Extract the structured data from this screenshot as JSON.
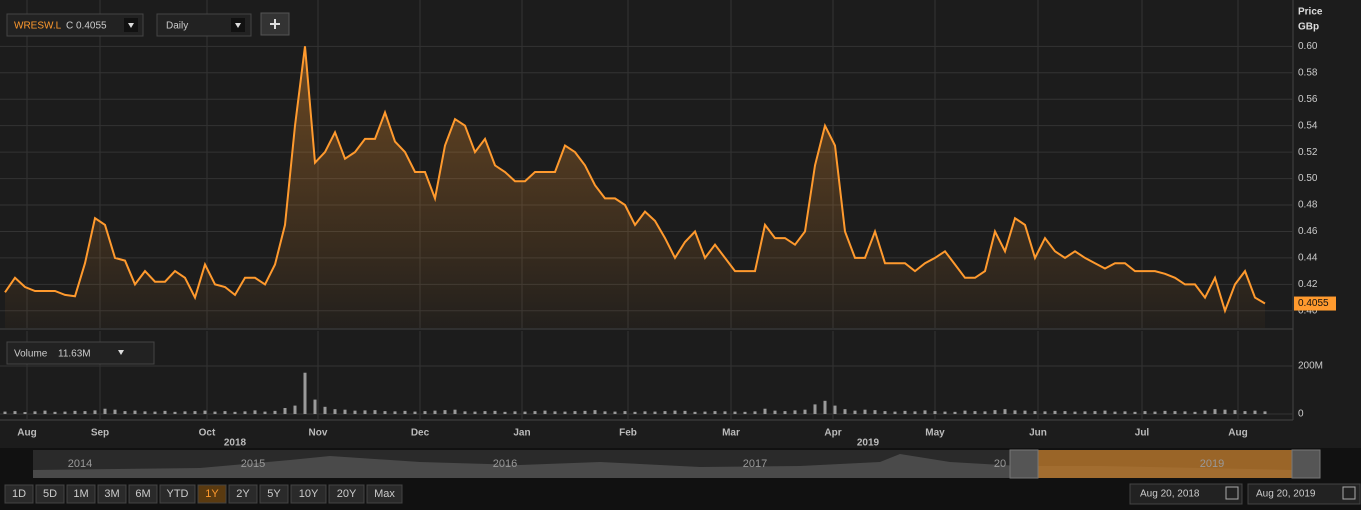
{
  "toolbar": {
    "symbol": "WRESW.L",
    "close_prefix": "C",
    "close_value": "0.4055",
    "interval": "Daily"
  },
  "chart_data": [
    {
      "type": "line",
      "ylabel": "Price",
      "yunit": "GBp",
      "color": "#ff9a2e",
      "grid": true,
      "values": [
        0.414,
        0.425,
        0.418,
        0.415,
        0.415,
        0.415,
        0.412,
        0.411,
        0.436,
        0.47,
        0.465,
        0.44,
        0.438,
        0.42,
        0.43,
        0.422,
        0.422,
        0.43,
        0.425,
        0.41,
        0.435,
        0.42,
        0.418,
        0.412,
        0.425,
        0.425,
        0.42,
        0.435,
        0.465,
        0.54,
        0.6,
        0.512,
        0.52,
        0.535,
        0.515,
        0.52,
        0.53,
        0.53,
        0.55,
        0.528,
        0.52,
        0.505,
        0.505,
        0.485,
        0.525,
        0.545,
        0.54,
        0.52,
        0.53,
        0.51,
        0.505,
        0.498,
        0.498,
        0.505,
        0.505,
        0.505,
        0.525,
        0.52,
        0.51,
        0.495,
        0.485,
        0.485,
        0.48,
        0.465,
        0.475,
        0.468,
        0.455,
        0.44,
        0.452,
        0.46,
        0.44,
        0.45,
        0.44,
        0.43,
        0.43,
        0.43,
        0.465,
        0.455,
        0.455,
        0.45,
        0.46,
        0.51,
        0.54,
        0.525,
        0.46,
        0.44,
        0.44,
        0.46,
        0.436,
        0.436,
        0.436,
        0.43,
        0.436,
        0.44,
        0.445,
        0.435,
        0.425,
        0.425,
        0.43,
        0.46,
        0.445,
        0.47,
        0.465,
        0.44,
        0.455,
        0.445,
        0.44,
        0.445,
        0.44,
        0.436,
        0.432,
        0.436,
        0.436,
        0.43,
        0.43,
        0.43,
        0.428,
        0.425,
        0.42,
        0.42,
        0.41,
        0.425,
        0.4,
        0.42,
        0.43,
        0.41,
        0.4055
      ],
      "ylim": [
        0.387,
        0.629
      ],
      "yticks": [
        {
          "value": 0.4,
          "label": "0.40"
        },
        0.42,
        0.44,
        0.46,
        0.48,
        {
          "value": 0.5,
          "label": "0.50"
        },
        0.52,
        0.54,
        0.56,
        0.58,
        {
          "value": 0.6,
          "label": "0.60"
        }
      ],
      "xticks": [
        {
          "value": 2.2,
          "label": "Aug"
        },
        {
          "value": 9.5,
          "label": "Sep"
        },
        {
          "value": 20.2,
          "label": "Oct"
        },
        {
          "value": 31.3,
          "label": "Nov"
        },
        {
          "value": 41.5,
          "label": "Dec"
        },
        {
          "value": 51.7,
          "label": "Jan"
        },
        {
          "value": 62.3,
          "label": "Feb"
        },
        {
          "value": 72.6,
          "label": "Mar"
        },
        {
          "value": 82.8,
          "label": "Apr"
        },
        {
          "value": 93,
          "label": "May"
        },
        {
          "value": 103.3,
          "label": "Jun"
        },
        {
          "value": 113.7,
          "label": "Jul"
        },
        {
          "value": 123.3,
          "label": "Aug"
        }
      ],
      "year_ticks": [
        {
          "value": 23,
          "label": "2018"
        },
        {
          "value": 86.3,
          "label": "2019"
        }
      ]
    },
    {
      "type": "bar",
      "name": "Volume",
      "current": "11.63M",
      "color": "#9a9a9a",
      "values": [
        10,
        12,
        8,
        11,
        14,
        9,
        10,
        13,
        12,
        15,
        22,
        18,
        12,
        14,
        11,
        10,
        13,
        9,
        11,
        12,
        14,
        10,
        12,
        9,
        11,
        15,
        10,
        13,
        25,
        35,
        172,
        60,
        30,
        20,
        18,
        14,
        15,
        16,
        12,
        11,
        13,
        10,
        12,
        14,
        16,
        18,
        11,
        10,
        12,
        13,
        9,
        11,
        10,
        12,
        14,
        11,
        10,
        12,
        13,
        16,
        11,
        10,
        12,
        9,
        11,
        10,
        12,
        14,
        13,
        9,
        10,
        12,
        11,
        10,
        9,
        11,
        22,
        14,
        12,
        15,
        18,
        40,
        55,
        35,
        20,
        14,
        18,
        16,
        12,
        10,
        13,
        11,
        15,
        12,
        10,
        9,
        14,
        12,
        11,
        16,
        20,
        15,
        14,
        12,
        11,
        13,
        12,
        10,
        11,
        12,
        14,
        10,
        11,
        9,
        12,
        10,
        13,
        12,
        11,
        9,
        14,
        20,
        18,
        16,
        12,
        14,
        11
      ],
      "ylim": [
        0,
        300
      ],
      "yticks": [
        0,
        {
          "value": 200,
          "label": "200M"
        }
      ]
    }
  ],
  "navigator": {
    "labels": [
      "2014",
      "2015",
      "2016",
      "2017",
      "20",
      "2019"
    ]
  },
  "range_buttons": {
    "items": [
      "1D",
      "5D",
      "1M",
      "3M",
      "6M",
      "YTD",
      "1Y",
      "2Y",
      "5Y",
      "10Y",
      "20Y",
      "Max"
    ],
    "active": 6
  },
  "date_range": {
    "from": "Aug 20, 2018",
    "to": "Aug 20, 2019"
  }
}
